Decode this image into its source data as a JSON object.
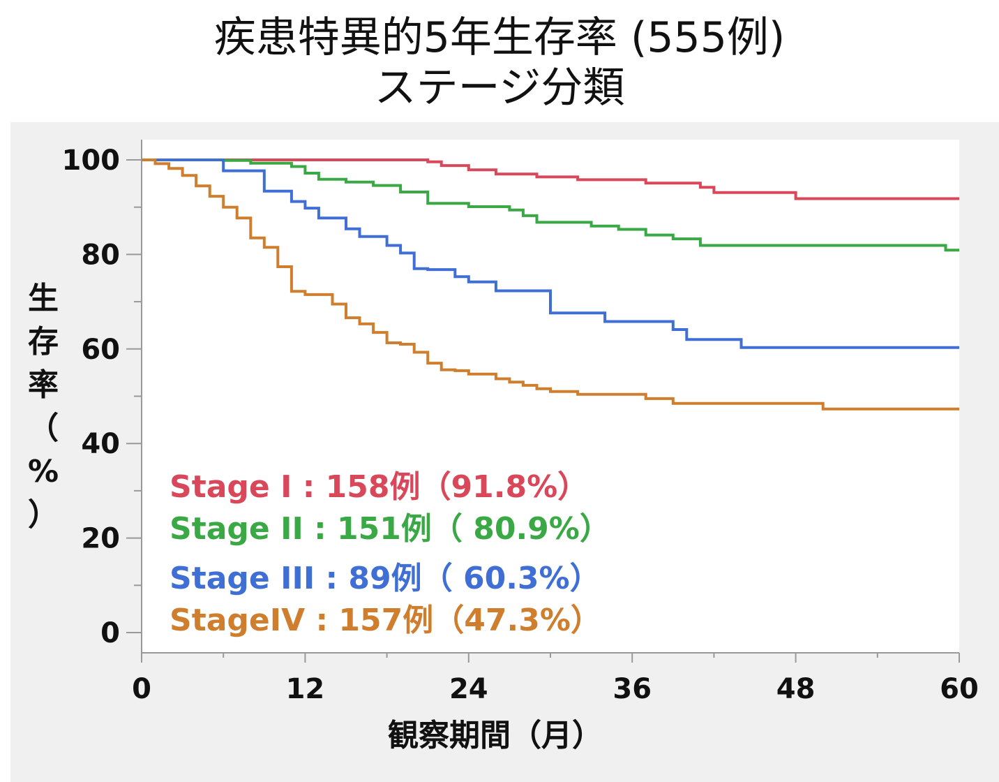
{
  "chart_data": {
    "type": "line",
    "title": "疾患特異的5年生存率 (555例)",
    "subtitle": "ステージ分類",
    "xlabel": "観察期間（月）",
    "ylabel": "生存率（%）",
    "xlim": [
      0,
      60
    ],
    "ylim": [
      0,
      100
    ],
    "xticks": [
      0,
      12,
      24,
      36,
      48,
      60
    ],
    "yticks": [
      0,
      20,
      40,
      60,
      80,
      100
    ],
    "grid": false,
    "legend_position": "bottom-left",
    "series": [
      {
        "name": "Stage I",
        "legend_label": "Stage I : 158例（91.8%）",
        "color": "#d9485a",
        "x": [
          0,
          21,
          22,
          24,
          26,
          29,
          32,
          37,
          41,
          42,
          48,
          60
        ],
        "y": [
          100,
          99.6,
          98.8,
          97.9,
          97,
          96.4,
          95.8,
          95.1,
          94.2,
          93.1,
          91.8,
          91.8
        ]
      },
      {
        "name": "Stage II",
        "legend_label": "Stage II : 151例（ 80.9%）",
        "color": "#3aa845",
        "x": [
          0,
          6,
          8,
          11,
          12,
          13,
          15,
          17,
          19,
          21,
          24,
          27,
          28,
          29,
          33,
          35,
          37,
          39,
          41,
          59,
          60
        ],
        "y": [
          100,
          99.9,
          99.3,
          98.6,
          97.2,
          95.9,
          95.3,
          94.6,
          93.2,
          90.8,
          90.1,
          89.4,
          88.2,
          86.8,
          86,
          85.3,
          84.1,
          83.3,
          81.9,
          80.9,
          80.9
        ]
      },
      {
        "name": "Stage III",
        "legend_label": "Stage III :   89例（ 60.3%）",
        "color": "#3f6fd4",
        "x": [
          0,
          6,
          9,
          11,
          12,
          13,
          15,
          16,
          18,
          19,
          20,
          21,
          23,
          24,
          26,
          30,
          34,
          39,
          40,
          44,
          60
        ],
        "y": [
          100,
          97.7,
          93.4,
          91.2,
          89.8,
          87.7,
          85.4,
          83.8,
          81.9,
          80.3,
          77,
          76.8,
          75.3,
          74.2,
          72.3,
          67.6,
          65.8,
          64.1,
          62,
          60.3,
          60.3
        ]
      },
      {
        "name": "Stage IV",
        "legend_label": "StageIV : 157例（47.3%）",
        "color": "#cf7e2e",
        "x": [
          0,
          1,
          2,
          3,
          4,
          5,
          6,
          7,
          8,
          9,
          10,
          11,
          12,
          14,
          15,
          16,
          17,
          18,
          19,
          20,
          21,
          22,
          23,
          24,
          26,
          27,
          28,
          29,
          30,
          32,
          37,
          39,
          50,
          60
        ],
        "y": [
          100,
          99.2,
          98.2,
          96.7,
          94.5,
          92.3,
          90,
          87.7,
          83.5,
          81.5,
          77.4,
          72.2,
          71.5,
          69.5,
          66.6,
          65.3,
          63.5,
          61.3,
          61,
          59.3,
          57,
          55.6,
          55.4,
          54.7,
          53.7,
          53,
          52.3,
          51.6,
          51,
          50.4,
          49.5,
          48.5,
          47.3,
          47.3
        ]
      }
    ]
  }
}
